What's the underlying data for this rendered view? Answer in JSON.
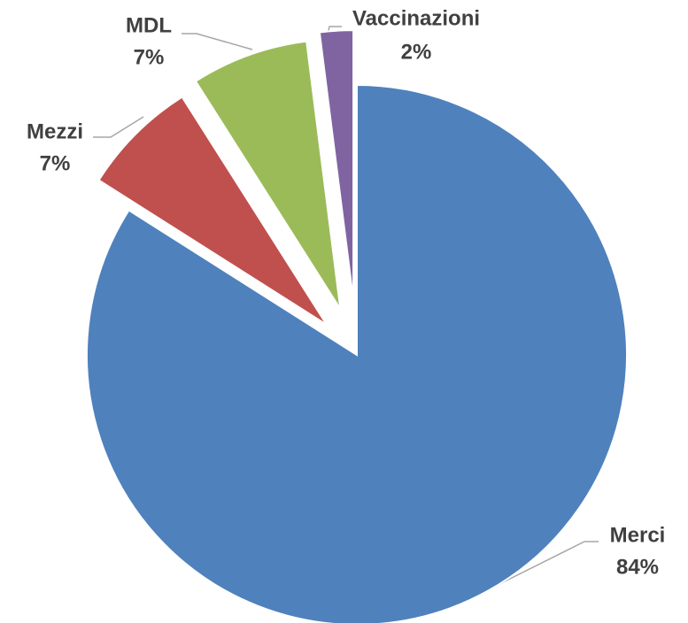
{
  "chart_data": {
    "type": "pie",
    "categories": [
      "Merci",
      "Mezzi",
      "MDL",
      "Vaccinazioni"
    ],
    "values": [
      84,
      7,
      7,
      2
    ],
    "value_labels": [
      "84%",
      "7%",
      "7%",
      "2%"
    ],
    "colors": [
      "#4f81bd",
      "#c0504d",
      "#9bbb59",
      "#8064a2"
    ]
  }
}
